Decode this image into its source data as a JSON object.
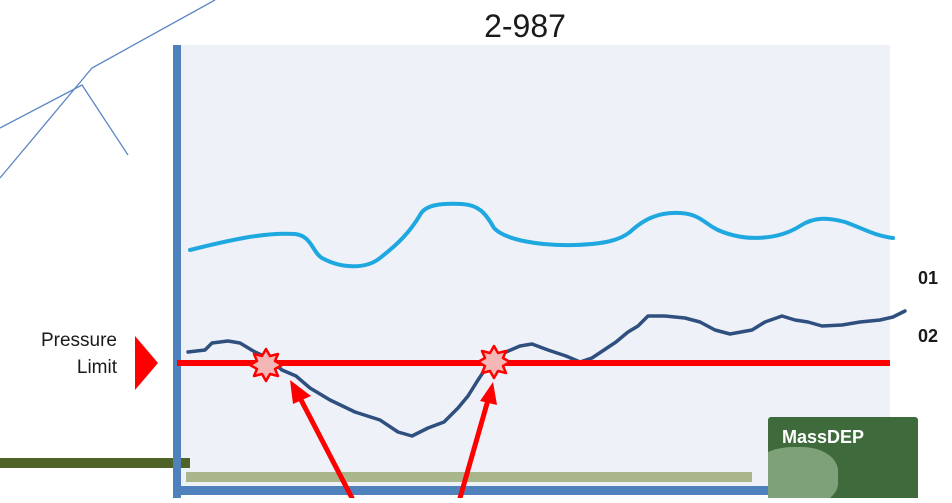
{
  "diagram": {
    "title": "2-987",
    "pressure_label_line1": "Pressure",
    "pressure_label_line2": "Limit",
    "series": [
      {
        "label": "01",
        "color": "#1fa8e0"
      },
      {
        "label": "02",
        "color": "#2f4f7f"
      }
    ],
    "limit_line_color": "#ff0000",
    "arrow_color": "#ff0000",
    "axis_color": "#4f81bd",
    "plot_background": "#eef2f8",
    "footer_bar_color": "#4f6228",
    "logo_text": "MassDEP"
  }
}
